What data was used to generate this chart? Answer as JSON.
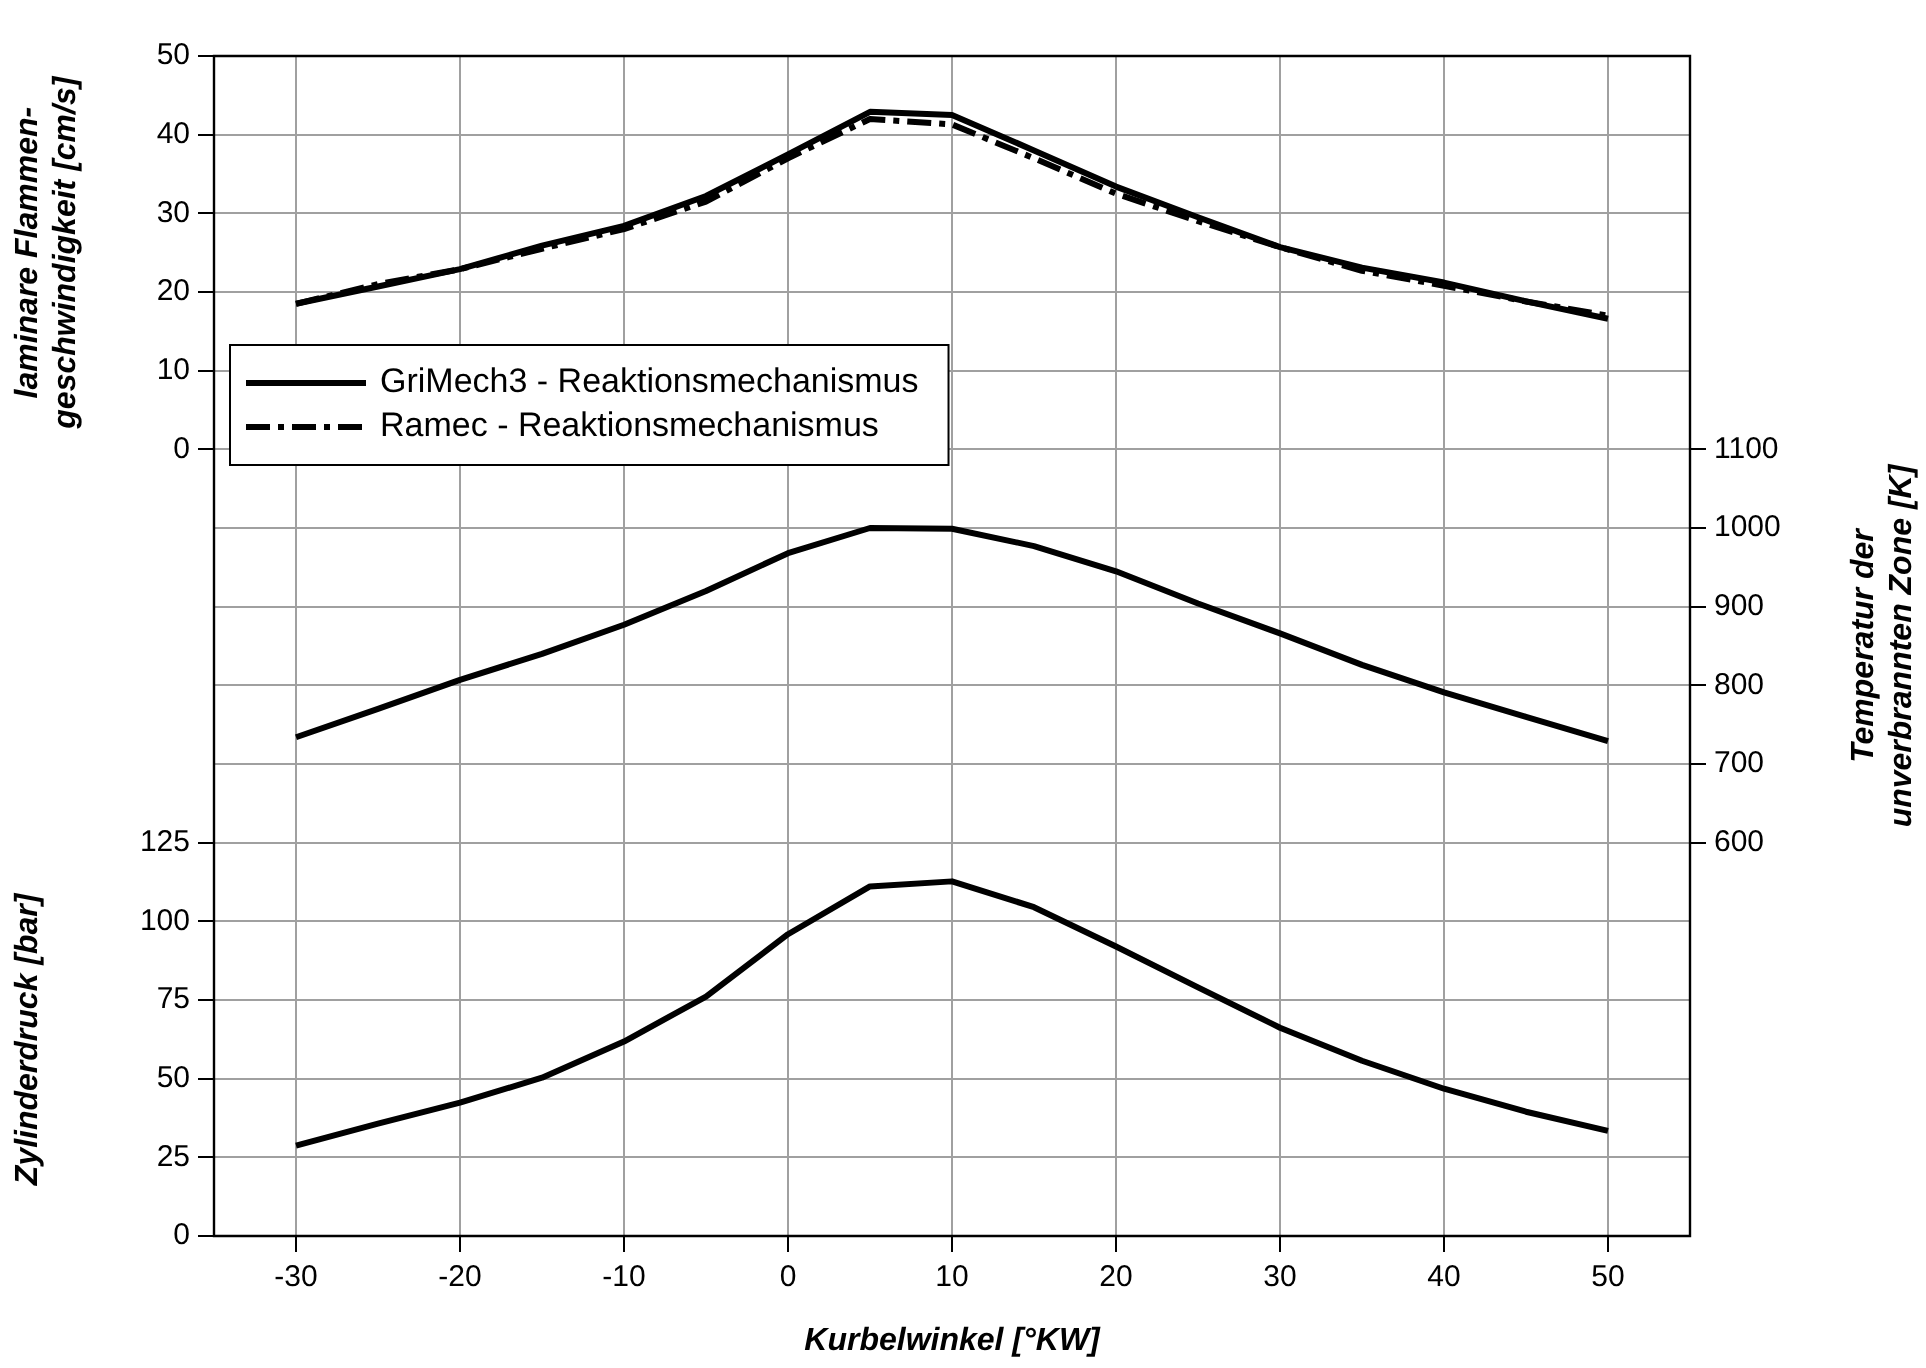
{
  "chart_data": {
    "type": "line",
    "xlabel": "Kurbelwinkel [°KW]",
    "ylabel": "laminare Flammen-\ngeschwindigkeit [cm/s]",
    "y2label": "Temperatur der\nunverbrannten Zone [K]",
    "y3label": "Zylinderdruck [bar]",
    "x": [
      -30,
      -25,
      -20,
      -15,
      -10,
      -5,
      0,
      5,
      10,
      15,
      20,
      25,
      30,
      35,
      40,
      45,
      50
    ],
    "xlim": [
      -35,
      55
    ],
    "xticks": [
      -30,
      -20,
      -10,
      0,
      10,
      20,
      30,
      40,
      50
    ],
    "ylim": [
      -100,
      50
    ],
    "yticks": [
      0,
      10,
      20,
      30,
      40,
      50
    ],
    "y2lim": [
      100,
      1600
    ],
    "y2ticks": [
      600,
      700,
      800,
      900,
      1000,
      1100
    ],
    "y3lim": [
      0,
      375
    ],
    "y3ticks": [
      0,
      25,
      50,
      75,
      100,
      125
    ],
    "grid": true,
    "legend": "left",
    "marker": "none",
    "series": [
      {
        "name": "GriMech3 - Reaktionsmechanismus",
        "color": "#000000",
        "line_style": "solid",
        "values": [
          18.5,
          20.7,
          22.9,
          25.9,
          28.4,
          32.2,
          37.5,
          42.9,
          42.5,
          38,
          33.4,
          29.5,
          25.7,
          23.1,
          21.2,
          18.8,
          16.6
        ]
      },
      {
        "name": "Ramec - Reaktionsmechanismus",
        "color": "#000000",
        "line_style": "dashed",
        "values": [
          18.5,
          21,
          22.9,
          25.5,
          28,
          31.5,
          37,
          42,
          41.3,
          37,
          32.5,
          29,
          25.7,
          22.7,
          20.8,
          18.8,
          17
        ]
      },
      {
        "color": "#000000",
        "axis": "y2",
        "line_style": "solid",
        "values": [
          734,
          770,
          807,
          840,
          877,
          920,
          968,
          1000,
          999,
          977,
          945,
          904,
          866,
          826,
          791,
          760,
          729
        ]
      },
      {
        "color": "#000000",
        "axis": "y3",
        "line_style": "solid",
        "values": [
          28.7,
          35.7,
          42.4,
          50.3,
          61.8,
          76.1,
          95.9,
          111.1,
          112.7,
          104.5,
          92,
          79,
          66.2,
          55.7,
          46.8,
          39.5,
          33.4
        ]
      }
    ]
  }
}
